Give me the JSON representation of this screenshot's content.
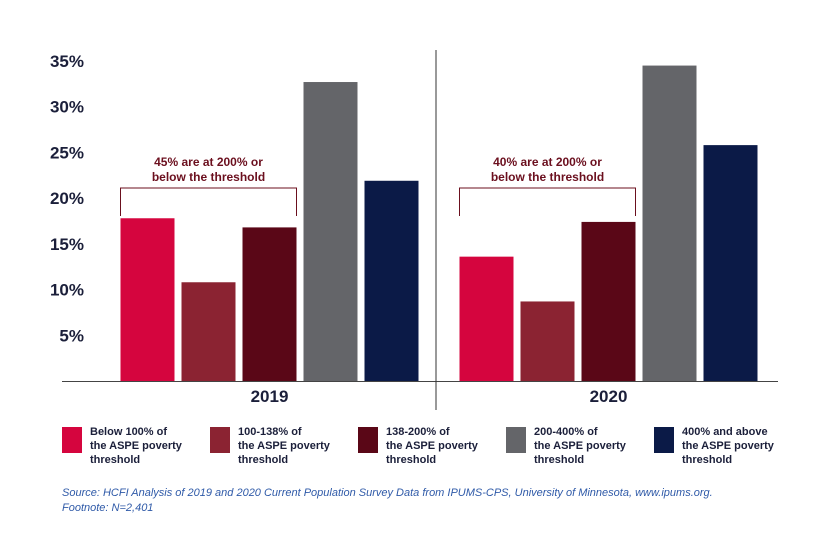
{
  "chart_data": {
    "type": "bar",
    "categories": [
      "2019",
      "2020"
    ],
    "series": [
      {
        "name": "Below 100% of the ASPE poverty threshold",
        "color": "#d5053e",
        "values": [
          17.8,
          13.6
        ]
      },
      {
        "name": "100-138% of the ASPE poverty threshold",
        "color": "#8b2332",
        "values": [
          10.8,
          8.7
        ]
      },
      {
        "name": "138-200% of the ASPE poverty threshold",
        "color": "#5a0717",
        "values": [
          16.8,
          17.4
        ]
      },
      {
        "name": "200-400% of the ASPE poverty threshold",
        "color": "#646569",
        "values": [
          32.7,
          34.5
        ]
      },
      {
        "name": "400% and above the ASPE poverty threshold",
        "color": "#0b1a47",
        "values": [
          21.9,
          25.8
        ]
      }
    ],
    "ylim": [
      0,
      35
    ],
    "yticks": [
      5,
      10,
      15,
      20,
      25,
      30,
      35
    ],
    "ytick_labels": [
      "5%",
      "10%",
      "15%",
      "20%",
      "25%",
      "30%",
      "35%"
    ],
    "annotations": [
      {
        "group": 0,
        "lines": [
          "45% are at 200% or",
          "below the threshold"
        ],
        "color": "#6b0f1e"
      },
      {
        "group": 1,
        "lines": [
          "40% are at 200% or",
          "below the threshold"
        ],
        "color": "#6b0f1e"
      }
    ],
    "legend_placement": "bottom"
  },
  "legend": [
    {
      "lines": [
        "Below 100% of",
        "the ASPE poverty",
        "threshold"
      ]
    },
    {
      "lines": [
        "100-138% of",
        "the ASPE poverty",
        "threshold"
      ]
    },
    {
      "lines": [
        "138-200% of",
        "the ASPE poverty",
        "threshold"
      ]
    },
    {
      "lines": [
        "200-400% of",
        "the ASPE poverty",
        "threshold"
      ]
    },
    {
      "lines": [
        "400% and above",
        "the ASPE poverty",
        "threshold"
      ]
    }
  ],
  "source": {
    "line1": "Source:  HCFI Analysis of 2019 and 2020 Current Population Survey Data from IPUMS-CPS, University of Minnesota, www.ipums.org.",
    "line2": "Footnote: N=2,401"
  }
}
